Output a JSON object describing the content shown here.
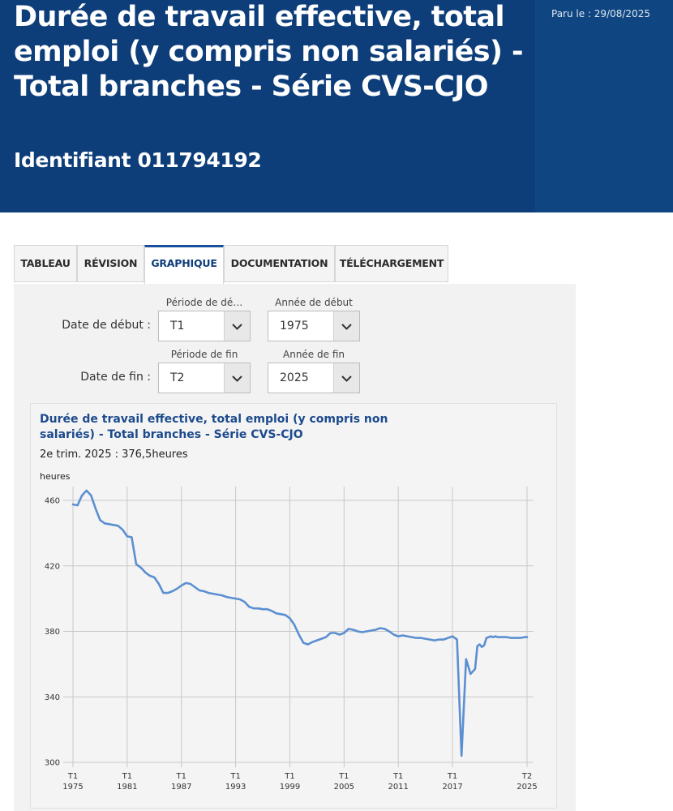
{
  "header": {
    "title": "Durée de travail effective, total emploi (y compris non salariés) - Total branches - Série CVS-CJO",
    "identifier": "Identifiant 011794192",
    "published": "Paru le : 29/08/2025"
  },
  "tabs": [
    {
      "label": "TABLEAU",
      "active": false
    },
    {
      "label": "RÉVISION",
      "active": false
    },
    {
      "label": "GRAPHIQUE",
      "active": true
    },
    {
      "label": "DOCUMENTATION",
      "active": false
    },
    {
      "label": "TÉLÉCHARGEMENT",
      "active": false
    }
  ],
  "filters": {
    "start": {
      "row_label": "Date de début :",
      "period_label": "Période de dé…",
      "period_value": "T1",
      "year_label": "Année de début",
      "year_value": "1975"
    },
    "end": {
      "row_label": "Date de fin :",
      "period_label": "Période de fin",
      "period_value": "T2",
      "year_label": "Année de fin",
      "year_value": "2025"
    }
  },
  "chart_header": {
    "title": "Durée de travail effective, total emploi (y compris non salariés) - Total branches - Série CVS-CJO",
    "last_value": "2e trim. 2025 : 376,5heures",
    "unit": "heures"
  },
  "colors": {
    "header": "#0d3e7a",
    "line": "#5b8fd1",
    "accent": "#1a4f9c"
  },
  "chart_data": {
    "type": "line",
    "ylabel": "heures",
    "ylim": [
      300,
      467
    ],
    "yticks": [
      300,
      340,
      380,
      420,
      460
    ],
    "xlim": [
      1975.0,
      2025.25
    ],
    "xticks": [
      {
        "x": 1975.0,
        "period": "T1",
        "year": "1975"
      },
      {
        "x": 1981.0,
        "period": "T1",
        "year": "1981"
      },
      {
        "x": 1987.0,
        "period": "T1",
        "year": "1987"
      },
      {
        "x": 1993.0,
        "period": "T1",
        "year": "1993"
      },
      {
        "x": 1999.0,
        "period": "T1",
        "year": "1999"
      },
      {
        "x": 2005.0,
        "period": "T1",
        "year": "2005"
      },
      {
        "x": 2011.0,
        "period": "T1",
        "year": "2011"
      },
      {
        "x": 2017.0,
        "period": "T1",
        "year": "2017"
      },
      {
        "x": 2025.25,
        "period": "T2",
        "year": "2025"
      }
    ],
    "grid": true,
    "series": [
      {
        "x": [
          1975.0,
          1975.5,
          1976.0,
          1976.5,
          1977.0,
          1977.5,
          1978.0,
          1978.5,
          1979.0,
          1979.5,
          1980.0,
          1980.5,
          1981.0,
          1981.5,
          1982.0,
          1982.5,
          1983.0,
          1983.5,
          1984.0,
          1984.5,
          1985.0,
          1985.5,
          1986.0,
          1986.5,
          1987.0,
          1987.5,
          1988.0,
          1988.5,
          1989.0,
          1989.5,
          1990.0,
          1990.5,
          1991.0,
          1991.5,
          1992.0,
          1992.5,
          1993.0,
          1993.5,
          1994.0,
          1994.5,
          1995.0,
          1995.5,
          1996.0,
          1996.5,
          1997.0,
          1997.5,
          1998.0,
          1998.5,
          1999.0,
          1999.5,
          2000.0,
          2000.5,
          2001.0,
          2001.5,
          2002.0,
          2002.5,
          2003.0,
          2003.5,
          2004.0,
          2004.5,
          2005.0,
          2005.5,
          2006.0,
          2006.5,
          2007.0,
          2007.5,
          2008.0,
          2008.5,
          2009.0,
          2009.5,
          2010.0,
          2010.5,
          2011.0,
          2011.5,
          2012.0,
          2012.5,
          2013.0,
          2013.5,
          2014.0,
          2014.5,
          2015.0,
          2015.5,
          2016.0,
          2016.5,
          2017.0,
          2017.5,
          2018.0,
          2018.5,
          2019.0,
          2019.5,
          2019.75,
          2020.0,
          2020.25,
          2020.5,
          2020.75,
          2021.0,
          2021.25,
          2021.5,
          2021.75,
          2022.0,
          2022.5,
          2023.0,
          2023.5,
          2024.0,
          2024.5,
          2025.0,
          2025.25
        ],
        "y": [
          457.5,
          457.0,
          463.0,
          466.0,
          463.0,
          455.0,
          448.0,
          446.0,
          445.5,
          445.0,
          444.5,
          442.0,
          438.0,
          437.5,
          421.0,
          419.0,
          416.0,
          414.0,
          413.0,
          409.0,
          403.5,
          403.5,
          404.5,
          406.0,
          408.0,
          409.5,
          409.0,
          407.0,
          405.0,
          404.5,
          403.5,
          403.0,
          402.5,
          402.0,
          401.0,
          400.5,
          400.0,
          399.5,
          398.0,
          395.0,
          394.0,
          394.0,
          393.5,
          393.5,
          392.5,
          391.0,
          390.5,
          390.0,
          388.0,
          384.0,
          378.0,
          373.0,
          372.0,
          373.5,
          374.5,
          375.5,
          376.5,
          379.0,
          379.0,
          378.0,
          379.0,
          381.5,
          381.0,
          380.0,
          379.5,
          380.0,
          380.5,
          381.0,
          382.0,
          381.5,
          380.0,
          378.0,
          377.0,
          377.5,
          377.0,
          376.5,
          376.0,
          376.0,
          375.5,
          375.0,
          374.5,
          375.0,
          375.0,
          376.0,
          377.0,
          375.0,
          304.0,
          363.0,
          354.0,
          357.0,
          371.0,
          372.0,
          370.5,
          371.5,
          376.0,
          376.5,
          377.0,
          376.5,
          377.0,
          376.5,
          376.5,
          376.5,
          376.0,
          376.0,
          376.0,
          376.5,
          376.5
        ]
      }
    ]
  }
}
